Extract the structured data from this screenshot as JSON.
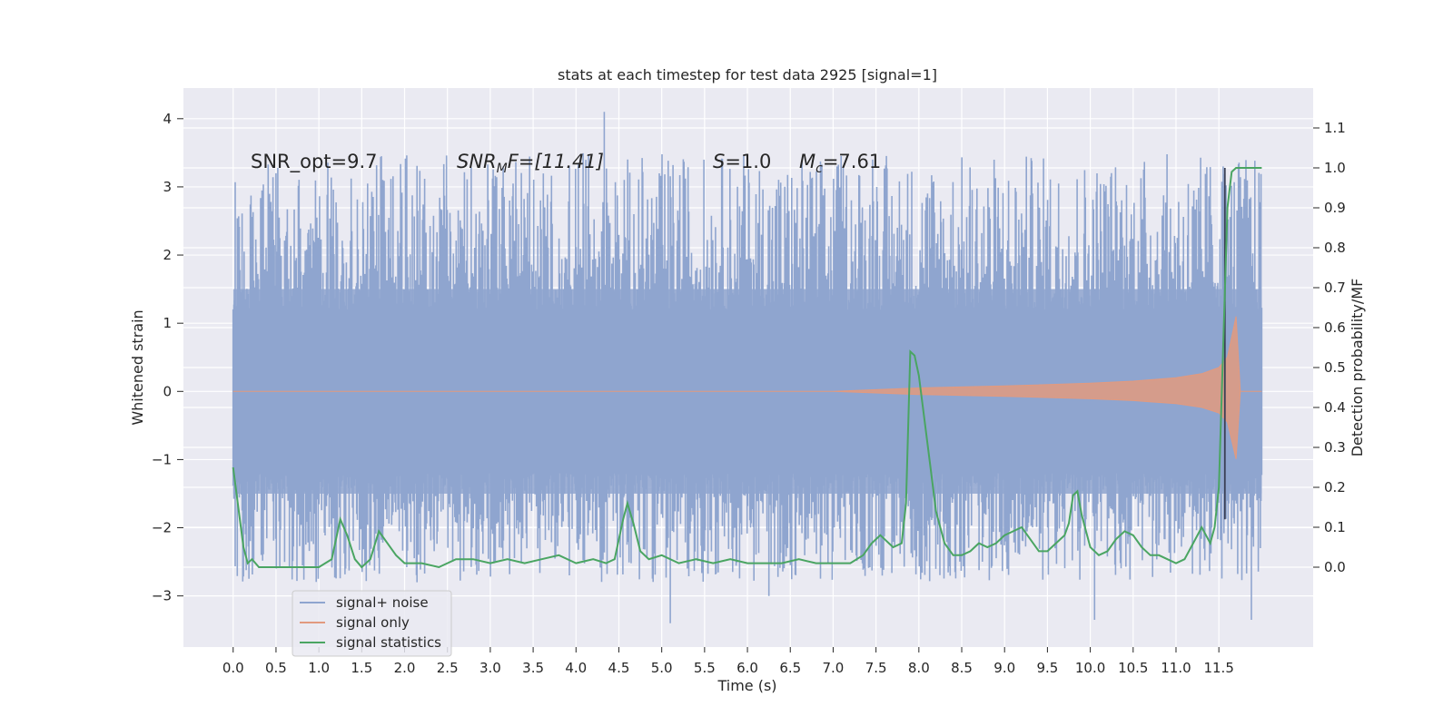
{
  "chart_data": {
    "type": "line",
    "title": "stats at each timestep for test data 2925 [signal=1]",
    "xlabel": "Time (s)",
    "ylabel_left": "Whitened strain",
    "ylabel_right": "Detection probability/MF",
    "xlim": [
      -0.58,
      12.6
    ],
    "ylim_left": [
      -3.75,
      4.45
    ],
    "ylim_right": [
      -0.2,
      1.2
    ],
    "x_ticks": [
      "0.0",
      "0.5",
      "1.0",
      "1.5",
      "2.0",
      "2.5",
      "3.0",
      "3.5",
      "4.0",
      "4.5",
      "5.0",
      "5.5",
      "6.0",
      "6.5",
      "7.0",
      "7.5",
      "8.0",
      "8.5",
      "9.0",
      "9.5",
      "10.0",
      "10.5",
      "11.0",
      "11.5"
    ],
    "y_ticks_left": [
      "4",
      "3",
      "2",
      "1",
      "0",
      "−1",
      "−2",
      "−3"
    ],
    "y_ticks_right": [
      "1.1",
      "1.0",
      "0.9",
      "0.8",
      "0.7",
      "0.6",
      "0.5",
      "0.4",
      "0.3",
      "0.2",
      "0.1",
      "0.0"
    ],
    "grid": true,
    "legend_position": "lower-left",
    "annotations": {
      "snr_opt": "SNR_opt=9.7",
      "snr_mf_sym": "SNR",
      "snr_mf_sub": "M",
      "snr_mf_rest": "F=[11.41]",
      "s_sym": "S",
      "s_rest": "=1.0",
      "mc_sym": "M",
      "mc_sub": "c",
      "mc_rest": "=7.61"
    },
    "event_marker_time": 11.57,
    "series": [
      {
        "name": "signal+ noise",
        "color": "#8fa5cf",
        "axis": "left",
        "x_range": [
          0.0,
          12.0
        ],
        "envelope": "noise band roughly within ±1.5 with spikes up to 4.1 and down to −3.4"
      },
      {
        "name": "signal only",
        "color": "#e29a7f",
        "axis": "left",
        "x_range": [
          0.0,
          12.0
        ],
        "envelope_x": [
          0.0,
          7.0,
          8.0,
          9.0,
          10.0,
          10.5,
          11.0,
          11.3,
          11.5,
          11.6,
          11.7,
          11.75,
          12.0
        ],
        "envelope_amplitude": [
          0.0,
          0.0,
          0.05,
          0.08,
          0.12,
          0.15,
          0.2,
          0.26,
          0.35,
          0.5,
          1.1,
          0.0,
          0.0
        ]
      },
      {
        "name": "signal statistics",
        "color": "#4aa562",
        "axis": "right",
        "x": [
          0.0,
          0.06,
          0.12,
          0.17,
          0.22,
          0.3,
          0.4,
          0.5,
          0.6,
          0.8,
          1.0,
          1.15,
          1.25,
          1.33,
          1.42,
          1.5,
          1.6,
          1.7,
          1.8,
          1.9,
          2.0,
          2.2,
          2.4,
          2.6,
          2.8,
          3.0,
          3.2,
          3.4,
          3.6,
          3.8,
          4.0,
          4.2,
          4.35,
          4.45,
          4.55,
          4.6,
          4.67,
          4.75,
          4.85,
          5.0,
          5.2,
          5.4,
          5.6,
          5.8,
          6.0,
          6.2,
          6.4,
          6.6,
          6.8,
          7.0,
          7.2,
          7.35,
          7.45,
          7.55,
          7.6,
          7.7,
          7.8,
          7.85,
          7.9,
          7.95,
          8.0,
          8.1,
          8.2,
          8.3,
          8.4,
          8.5,
          8.6,
          8.7,
          8.8,
          8.9,
          9.0,
          9.1,
          9.2,
          9.3,
          9.4,
          9.5,
          9.6,
          9.7,
          9.75,
          9.8,
          9.85,
          9.9,
          10.0,
          10.1,
          10.2,
          10.3,
          10.4,
          10.5,
          10.6,
          10.7,
          10.8,
          10.9,
          11.0,
          11.1,
          11.2,
          11.3,
          11.35,
          11.4,
          11.45,
          11.5,
          11.55,
          11.6,
          11.65,
          11.7,
          11.8,
          11.9,
          12.0
        ],
        "y": [
          0.25,
          0.15,
          0.05,
          0.01,
          0.02,
          0.0,
          0.0,
          0.0,
          0.0,
          0.0,
          0.0,
          0.02,
          0.12,
          0.08,
          0.02,
          0.0,
          0.02,
          0.09,
          0.06,
          0.03,
          0.01,
          0.01,
          0.0,
          0.02,
          0.02,
          0.01,
          0.02,
          0.01,
          0.02,
          0.03,
          0.01,
          0.02,
          0.01,
          0.02,
          0.12,
          0.16,
          0.11,
          0.04,
          0.02,
          0.03,
          0.01,
          0.02,
          0.01,
          0.02,
          0.01,
          0.01,
          0.01,
          0.02,
          0.01,
          0.01,
          0.01,
          0.03,
          0.06,
          0.08,
          0.07,
          0.05,
          0.06,
          0.16,
          0.54,
          0.53,
          0.48,
          0.31,
          0.14,
          0.06,
          0.03,
          0.03,
          0.04,
          0.06,
          0.05,
          0.06,
          0.08,
          0.09,
          0.1,
          0.07,
          0.04,
          0.04,
          0.06,
          0.08,
          0.11,
          0.18,
          0.19,
          0.13,
          0.05,
          0.03,
          0.04,
          0.07,
          0.09,
          0.08,
          0.05,
          0.03,
          0.03,
          0.02,
          0.01,
          0.02,
          0.06,
          0.1,
          0.08,
          0.06,
          0.1,
          0.2,
          0.55,
          0.9,
          0.99,
          1.0,
          1.0,
          1.0,
          1.0
        ]
      }
    ]
  }
}
